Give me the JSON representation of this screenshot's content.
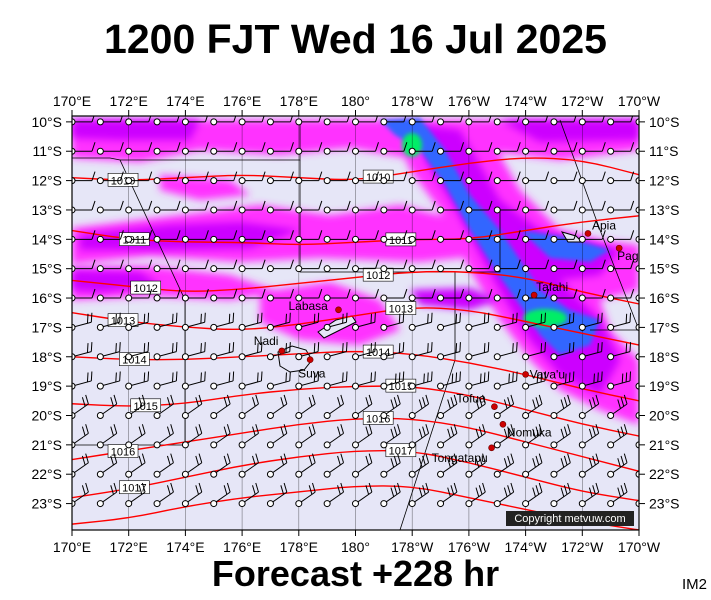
{
  "title": "1200 FJT Wed 16 Jul 2025",
  "footer": "Forecast +228 hr",
  "corner_code": "IM2",
  "copyright": "Copyright metvuw.com",
  "lon_labels": [
    "170°E",
    "172°E",
    "174°E",
    "176°E",
    "178°E",
    "180°",
    "178°W",
    "176°W",
    "174°W",
    "172°W",
    "170°W"
  ],
  "lat_labels": [
    "10°S",
    "11°S",
    "12°S",
    "13°S",
    "14°S",
    "15°S",
    "16°S",
    "17°S",
    "18°S",
    "19°S",
    "20°S",
    "21°S",
    "22°S",
    "23°S"
  ],
  "places": [
    {
      "name": "Apia",
      "lon": -171.8,
      "lat": -13.8
    },
    {
      "name": "Pago Pago",
      "lon": -170.7,
      "lat": -14.3
    },
    {
      "name": "Tafahi",
      "lon": -173.7,
      "lat": -15.9
    },
    {
      "name": "Labasa",
      "lon": 179.4,
      "lat": -16.4
    },
    {
      "name": "Nadi",
      "lon": 177.4,
      "lat": -17.8
    },
    {
      "name": "Suva",
      "lon": 178.4,
      "lat": -18.1
    },
    {
      "name": "Vava'u",
      "lon": -174.0,
      "lat": -18.6
    },
    {
      "name": "Tofua",
      "lon": -175.1,
      "lat": -19.7
    },
    {
      "name": "Nomuka",
      "lon": -174.8,
      "lat": -20.3
    },
    {
      "name": "Tongatapu",
      "lon": -175.2,
      "lat": -21.1
    }
  ],
  "isobars": [
    {
      "label": "1010",
      "points": [
        [
          170,
          -11.9
        ],
        [
          172,
          -12.0
        ],
        [
          174,
          -11.9
        ],
        [
          176,
          -11.8
        ],
        [
          178,
          -11.9
        ],
        [
          180,
          -12.0
        ],
        [
          182,
          -11.7
        ],
        [
          184,
          -11.4
        ],
        [
          186,
          -11.2
        ],
        [
          188,
          -11.3
        ],
        [
          190,
          -11.8
        ]
      ]
    },
    {
      "label": "1011",
      "points": [
        [
          170,
          -13.7
        ],
        [
          172,
          -14.0
        ],
        [
          174,
          -14.1
        ],
        [
          176,
          -14.1
        ],
        [
          178,
          -14.2
        ],
        [
          180,
          -14.1
        ],
        [
          182,
          -14.0
        ],
        [
          184,
          -14.0
        ],
        [
          186,
          -13.7
        ],
        [
          188,
          -13.4
        ],
        [
          190,
          -13.2
        ]
      ]
    },
    {
      "label": "1012",
      "points": [
        [
          170,
          -15.4
        ],
        [
          172,
          -15.6
        ],
        [
          174,
          -15.8
        ],
        [
          176,
          -15.7
        ],
        [
          178,
          -15.5
        ],
        [
          180,
          -15.3
        ],
        [
          182,
          -15.1
        ],
        [
          184,
          -15.1
        ],
        [
          186,
          -15.3
        ],
        [
          188,
          -15.8
        ],
        [
          190,
          -16.2
        ]
      ]
    },
    {
      "label": "1013",
      "points": [
        [
          170,
          -16.5
        ],
        [
          172,
          -16.8
        ],
        [
          174,
          -17.0
        ],
        [
          176,
          -17.1
        ],
        [
          178,
          -16.9
        ],
        [
          180,
          -16.6
        ],
        [
          182,
          -16.3
        ],
        [
          184,
          -16.4
        ],
        [
          186,
          -16.8
        ],
        [
          188,
          -17.2
        ],
        [
          190,
          -17.6
        ]
      ]
    },
    {
      "label": "1014",
      "points": [
        [
          170,
          -18.0
        ],
        [
          172,
          -18.1
        ],
        [
          174,
          -18.1
        ],
        [
          176,
          -18.0
        ],
        [
          178,
          -17.9
        ],
        [
          180,
          -17.8
        ],
        [
          182,
          -17.9
        ],
        [
          184,
          -18.2
        ],
        [
          186,
          -18.6
        ],
        [
          188,
          -19.1
        ],
        [
          190,
          -19.5
        ]
      ]
    },
    {
      "label": "1015",
      "points": [
        [
          170,
          -19.6
        ],
        [
          172,
          -19.7
        ],
        [
          174,
          -19.6
        ],
        [
          176,
          -19.3
        ],
        [
          178,
          -19.1
        ],
        [
          180,
          -19.0
        ],
        [
          182,
          -19.0
        ],
        [
          184,
          -19.3
        ],
        [
          186,
          -19.8
        ],
        [
          188,
          -20.3
        ],
        [
          190,
          -20.7
        ]
      ]
    },
    {
      "label": "1016",
      "points": [
        [
          170,
          -21.5
        ],
        [
          172,
          -21.2
        ],
        [
          174,
          -20.9
        ],
        [
          176,
          -20.6
        ],
        [
          178,
          -20.3
        ],
        [
          180,
          -20.1
        ],
        [
          182,
          -20.1
        ],
        [
          184,
          -20.4
        ],
        [
          186,
          -20.9
        ],
        [
          188,
          -21.4
        ],
        [
          190,
          -21.9
        ]
      ]
    },
    {
      "label": "1017",
      "points": [
        [
          170,
          -22.8
        ],
        [
          172,
          -22.5
        ],
        [
          174,
          -22.1
        ],
        [
          176,
          -21.7
        ],
        [
          178,
          -21.4
        ],
        [
          180,
          -21.2
        ],
        [
          182,
          -21.2
        ],
        [
          184,
          -21.6
        ],
        [
          186,
          -22.1
        ],
        [
          188,
          -22.6
        ],
        [
          190,
          -22.9
        ]
      ]
    },
    {
      "label": "",
      "points": [
        [
          170,
          -23.7
        ],
        [
          172,
          -23.5
        ],
        [
          174,
          -23.1
        ],
        [
          176,
          -22.8
        ],
        [
          178,
          -22.6
        ],
        [
          180,
          -22.4
        ],
        [
          182,
          -22.4
        ],
        [
          184,
          -22.8
        ],
        [
          186,
          -23.2
        ],
        [
          188,
          -23.6
        ],
        [
          190,
          -23.9
        ]
      ]
    }
  ],
  "colors": {
    "background": "#e6e6f7",
    "isobar": "#ff0000",
    "rain_light": "#ff33ff",
    "rain_moderate": "#cc00ff",
    "rain_heavy": "#3366ff",
    "rain_extreme": "#00ee66",
    "place_marker": "#cc0000"
  }
}
